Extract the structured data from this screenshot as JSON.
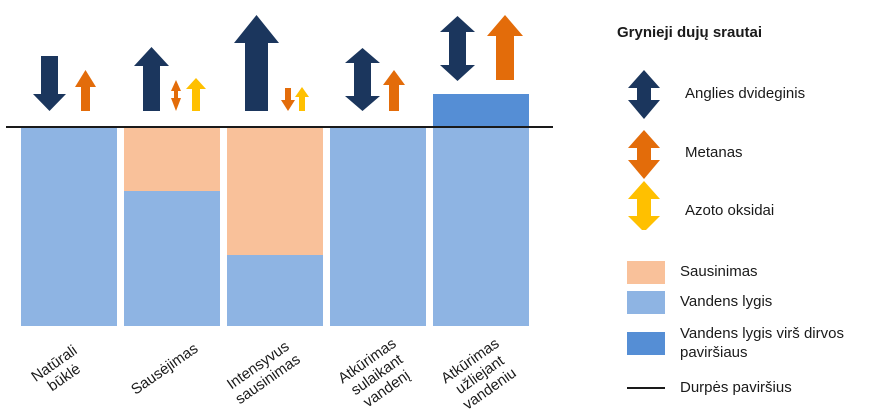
{
  "colors": {
    "co2": "#1b365d",
    "ch4": "#e36c0a",
    "nox": "#ffc000",
    "drainage": "#f9c19a",
    "water": "#8eb4e3",
    "water_above": "#558ed5",
    "surface": "#1a1a1a"
  },
  "columns": [
    {
      "label_lines": [
        "Natūrali",
        "būklė"
      ]
    },
    {
      "label_lines": [
        "Sausėjimas"
      ]
    },
    {
      "label_lines": [
        "Intensyvus",
        "sausinimas"
      ]
    },
    {
      "label_lines": [
        "Atkūrimas",
        "sulaikant",
        "vandenį"
      ]
    },
    {
      "label_lines": [
        "Atkūrimas",
        "užliejant",
        "vandeniu"
      ]
    }
  ],
  "legend": {
    "title": "Grynieji dujų srautai",
    "gases": [
      {
        "label": "Anglies dvideginis",
        "icon": "co2-double-arrow-icon"
      },
      {
        "label": "Metanas",
        "icon": "ch4-double-arrow-icon"
      },
      {
        "label": "Azoto oksidai",
        "icon": "nox-double-arrow-icon"
      }
    ],
    "layers": [
      {
        "label": "Sausinimas"
      },
      {
        "label": "Vandens lygis"
      },
      {
        "label_lines": [
          "Vandens lygis virš dirvos",
          "paviršiaus"
        ]
      },
      {
        "label": "Durpės paviršius"
      }
    ]
  }
}
